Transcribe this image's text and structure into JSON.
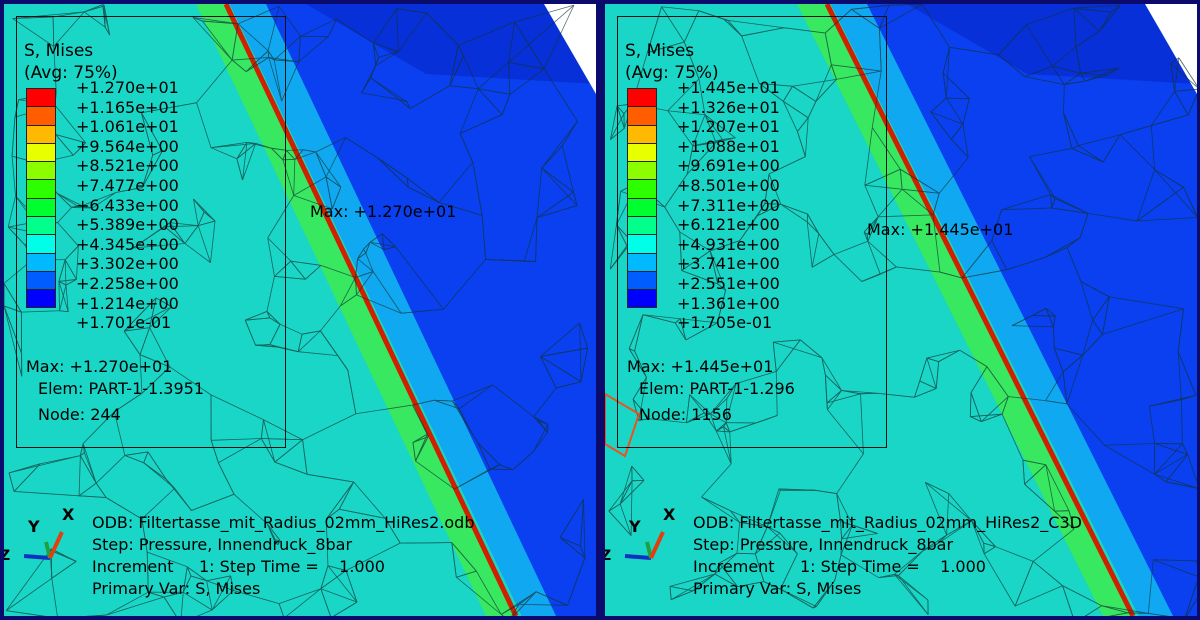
{
  "colors": {
    "frame": "#0b0b6e",
    "background": "#1ad6c6",
    "accent_line": "#d02000"
  },
  "legend_colors": [
    "#ff0000",
    "#ff5d00",
    "#ffb900",
    "#e8ff00",
    "#8bff00",
    "#2eff00",
    "#00ff2e",
    "#00ff8b",
    "#00ffe8",
    "#00b9ff",
    "#005dff",
    "#0000ff"
  ],
  "panels": [
    {
      "legend_title": "S, Mises",
      "legend_subtitle": "(Avg: 75%)",
      "values": [
        "+1.270e+01",
        "+1.165e+01",
        "+1.061e+01",
        "+9.564e+00",
        "+8.521e+00",
        "+7.477e+00",
        "+6.433e+00",
        "+5.389e+00",
        "+4.345e+00",
        "+3.302e+00",
        "+2.258e+00",
        "+1.214e+00",
        "+1.701e-01"
      ],
      "max": "Max: +1.270e+01",
      "elem": "Elem: PART-1-1.3951",
      "node": "Node: 244",
      "max_label": "Max: +1.270e+01",
      "odb": "ODB: Filtertasse_mit_Radius_02mm_HiRes2.odb",
      "step": "Step: Pressure, Innendruck_8bar",
      "increment": "Increment     1: Step Time =    1.000",
      "primary_var": "Primary Var: S, Mises"
    },
    {
      "legend_title": "S, Mises",
      "legend_subtitle": "(Avg: 75%)",
      "values": [
        "+1.445e+01",
        "+1.326e+01",
        "+1.207e+01",
        "+1.088e+01",
        "+9.691e+00",
        "+8.501e+00",
        "+7.311e+00",
        "+6.121e+00",
        "+4.931e+00",
        "+3.741e+00",
        "+2.551e+00",
        "+1.361e+00",
        "+1.705e-01"
      ],
      "max": "Max: +1.445e+01",
      "elem": "Elem: PART-1-1.296",
      "node": "Node: 1156",
      "max_label": "Max: +1.445e+01",
      "odb": "ODB: Filtertasse_mit_Radius_02mm_HiRes2_C3D",
      "step": "Step: Pressure, Innendruck_8bar",
      "increment": "Increment     1: Step Time =    1.000",
      "primary_var": "Primary Var: S, Mises"
    }
  ],
  "triad": {
    "x": "X",
    "y": "Y",
    "z": "Z"
  }
}
